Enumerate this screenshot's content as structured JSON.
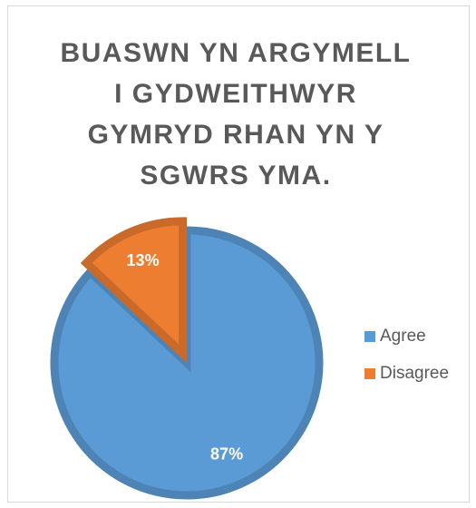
{
  "chart_data": {
    "type": "pie",
    "title": "BUASWN YN ARGYMELL I GYDWEITHWYR GYMRYD RHAN YN Y SGWRS YMA.",
    "categories": [
      "Agree",
      "Disagree"
    ],
    "values": [
      87,
      13
    ],
    "value_labels": [
      "87%",
      "13%"
    ],
    "colors": [
      "#5b9bd5",
      "#ed7d31"
    ],
    "legend": "right"
  }
}
